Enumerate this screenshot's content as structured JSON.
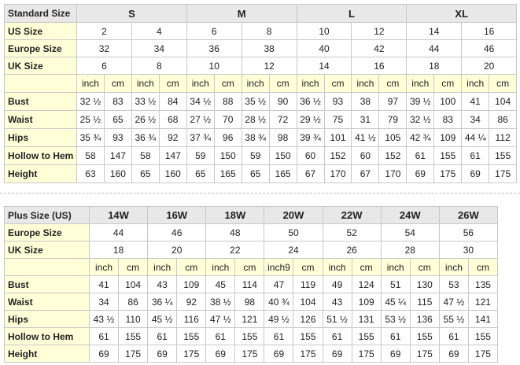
{
  "tables": [
    {
      "header": [
        "Standard Size",
        "S",
        "M",
        "L",
        "XL"
      ],
      "size_rows": [
        {
          "label": "US Size",
          "values": [
            2,
            4,
            6,
            8,
            10,
            12,
            14,
            16
          ]
        },
        {
          "label": "Europe Size",
          "values": [
            32,
            34,
            36,
            38,
            40,
            42,
            44,
            46
          ]
        },
        {
          "label": "UK Size",
          "values": [
            6,
            8,
            10,
            12,
            14,
            16,
            18,
            20
          ]
        }
      ],
      "units": [
        "inch",
        "cm",
        "inch",
        "cm",
        "inch",
        "cm",
        "inch",
        "cm",
        "inch",
        "cm",
        "inch",
        "cm",
        "inch",
        "cm",
        "inch",
        "cm"
      ],
      "measure_rows": [
        {
          "label": "Bust",
          "values": [
            "32 ½",
            83,
            "33 ½",
            84,
            "34 ½",
            88,
            "35 ½",
            90,
            "36 ½",
            93,
            38,
            97,
            "39 ½",
            100,
            41,
            104
          ]
        },
        {
          "label": "Waist",
          "values": [
            "25 ½",
            65,
            "26 ½",
            68,
            "27 ½",
            70,
            "28 ½",
            72,
            "29 ½",
            75,
            31,
            79,
            "32 ½",
            83,
            34,
            86
          ]
        },
        {
          "label": "Hips",
          "values": [
            "35 ¾",
            93,
            "36 ¾",
            92,
            "37 ¾",
            96,
            "38 ¾",
            98,
            "39 ¾",
            101,
            "41 ½",
            105,
            "42 ¾",
            109,
            "44 ¼",
            112
          ]
        },
        {
          "label": "Hollow to Hem",
          "values": [
            58,
            147,
            58,
            147,
            59,
            150,
            59,
            150,
            60,
            152,
            60,
            152,
            61,
            155,
            61,
            155
          ]
        },
        {
          "label": "Height",
          "values": [
            63,
            160,
            65,
            160,
            65,
            165,
            65,
            165,
            67,
            170,
            67,
            170,
            69,
            175,
            69,
            175
          ]
        }
      ]
    },
    {
      "header": [
        "Plus Size (US)",
        "14W",
        "16W",
        "18W",
        "20W",
        "22W",
        "24W",
        "26W"
      ],
      "size_rows": [
        {
          "label": "Europe Size",
          "values": [
            44,
            46,
            48,
            50,
            52,
            54,
            56
          ]
        },
        {
          "label": "UK Size",
          "values": [
            18,
            20,
            22,
            24,
            26,
            28,
            30
          ]
        }
      ],
      "units": [
        "inch",
        "cm",
        "inch",
        "cm",
        "inch",
        "cm",
        "inch9",
        "cm",
        "inch",
        "cm",
        "inch",
        "cm",
        "inch",
        "cm"
      ],
      "measure_rows": [
        {
          "label": "Bust",
          "values": [
            41,
            104,
            43,
            109,
            45,
            114,
            47,
            119,
            49,
            124,
            51,
            130,
            53,
            135
          ]
        },
        {
          "label": "Waist",
          "values": [
            34,
            86,
            "36 ¼",
            92,
            "38 ½",
            98,
            "40 ¾",
            104,
            43,
            109,
            "45 ¼",
            115,
            "47 ½",
            121
          ]
        },
        {
          "label": "Hips",
          "values": [
            "43 ½",
            110,
            "45 ½",
            116,
            "47 ½",
            121,
            "49 ½",
            126,
            "51 ½",
            131,
            "53 ½",
            136,
            "55 ½",
            141
          ]
        },
        {
          "label": "Hollow to Hem",
          "values": [
            61,
            155,
            61,
            155,
            61,
            155,
            61,
            155,
            61,
            155,
            61,
            155,
            61,
            155
          ]
        },
        {
          "label": "Height",
          "values": [
            69,
            175,
            69,
            175,
            69,
            175,
            69,
            175,
            69,
            175,
            69,
            175,
            69,
            175
          ]
        }
      ]
    }
  ]
}
